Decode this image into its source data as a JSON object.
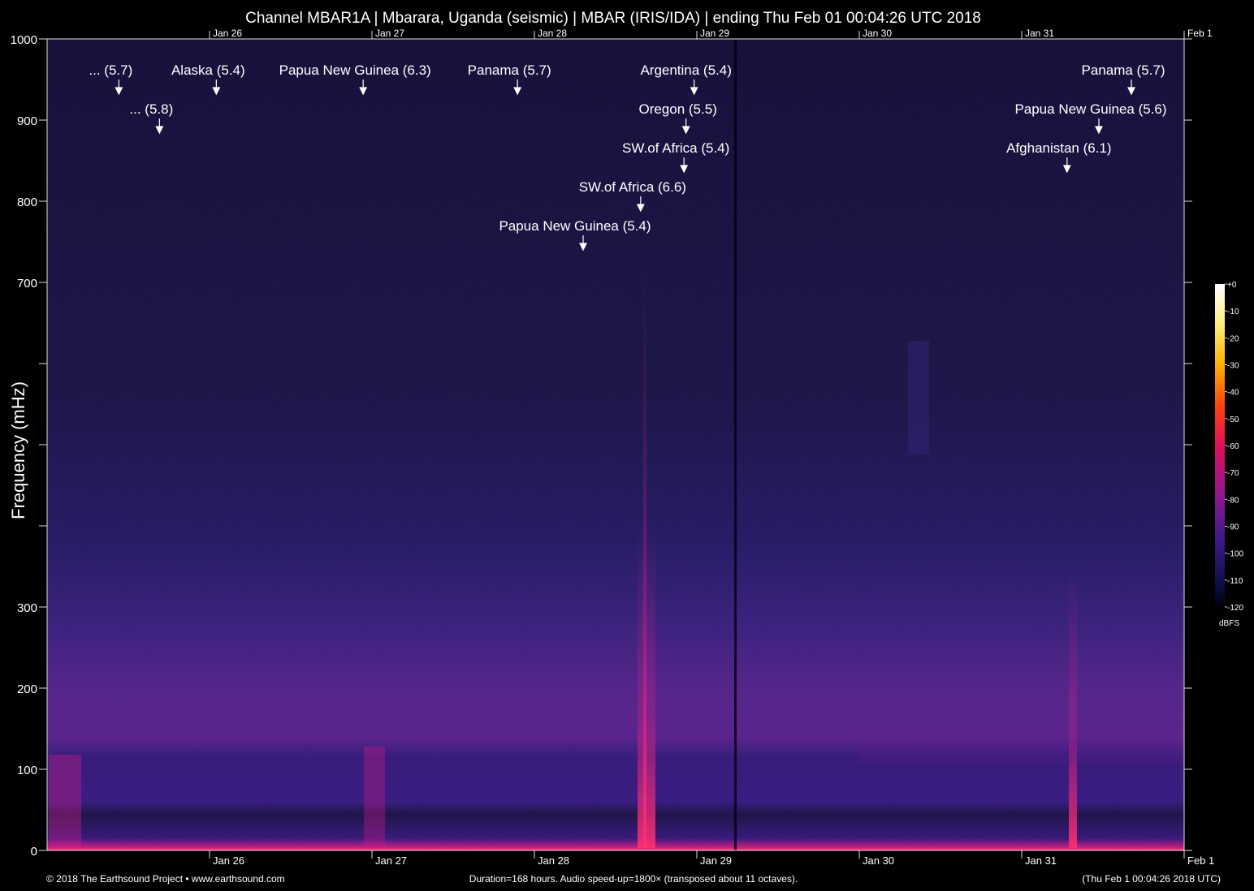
{
  "chart_data": {
    "type": "spectrogram",
    "title": "Channel MBAR1A | Mbarara, Uganda (seismic) | MBAR (IRIS/IDA) | ending Thu Feb 01 00:04:26 UTC 2018",
    "y_label": "Frequency (mHz)",
    "xlim": [
      0,
      168
    ],
    "xticks": [
      {
        "value": 24,
        "label": "Jan 26"
      },
      {
        "value": 48,
        "label": "Jan 27"
      },
      {
        "value": 72,
        "label": "Jan 28"
      },
      {
        "value": 96,
        "label": "Jan 29"
      },
      {
        "value": 120,
        "label": "Jan 30"
      },
      {
        "value": 144,
        "label": "Jan 31"
      },
      {
        "value": 168,
        "label": "Feb  1"
      }
    ],
    "ylim": [
      0,
      1000
    ],
    "yticks": [
      0,
      100,
      200,
      300,
      700,
      800,
      900,
      1000
    ],
    "yticks_unlabeled": [
      400,
      500,
      600
    ],
    "annotations": [
      {
        "text": "... (5.7)",
        "x": 10.6
      },
      {
        "text": "Papua New Guinea (6.3)",
        "x": 46.7
      },
      {
        "text": "Panama (5.7)",
        "x": 69.5
      },
      {
        "text": "Argentina (5.4)",
        "x": 95.6
      },
      {
        "text": "Panama (5.7)",
        "x": 160.2
      },
      {
        "text": "Alaska (5.4)",
        "x": 25.0
      },
      {
        "text": "Oregon (5.5)",
        "x": 94.4
      },
      {
        "text": "Papua New Guinea (5.6)",
        "x": 155.4
      },
      {
        "text": "... (5.8)",
        "x": 16.6
      },
      {
        "text": "SW.of Africa (5.4)",
        "x": 94.1
      },
      {
        "text": "Afghanistan (6.1)",
        "x": 150.7
      },
      {
        "text": "SW.of Africa (6.6)",
        "x": 87.7
      },
      {
        "text": "Papua New Guinea (5.4)",
        "x": 79.2
      }
    ],
    "colorbar": {
      "lim": [
        -120,
        0
      ],
      "label": "dBFS",
      "ticks": [
        {
          "value": 0,
          "label": "+0"
        },
        -10,
        -20,
        -30,
        -40,
        -50,
        -60,
        -70,
        -80,
        -90,
        -100,
        -110,
        -120
      ]
    },
    "footer": {
      "left": "© 2018 The Earthsound Project • www.earthsound.com",
      "center": "Duration=168 hours. Audio speed-up=1800× (transposed about 11 octaves).",
      "right": "(Thu Feb  1 00:04:26 2018 UTC)"
    }
  }
}
